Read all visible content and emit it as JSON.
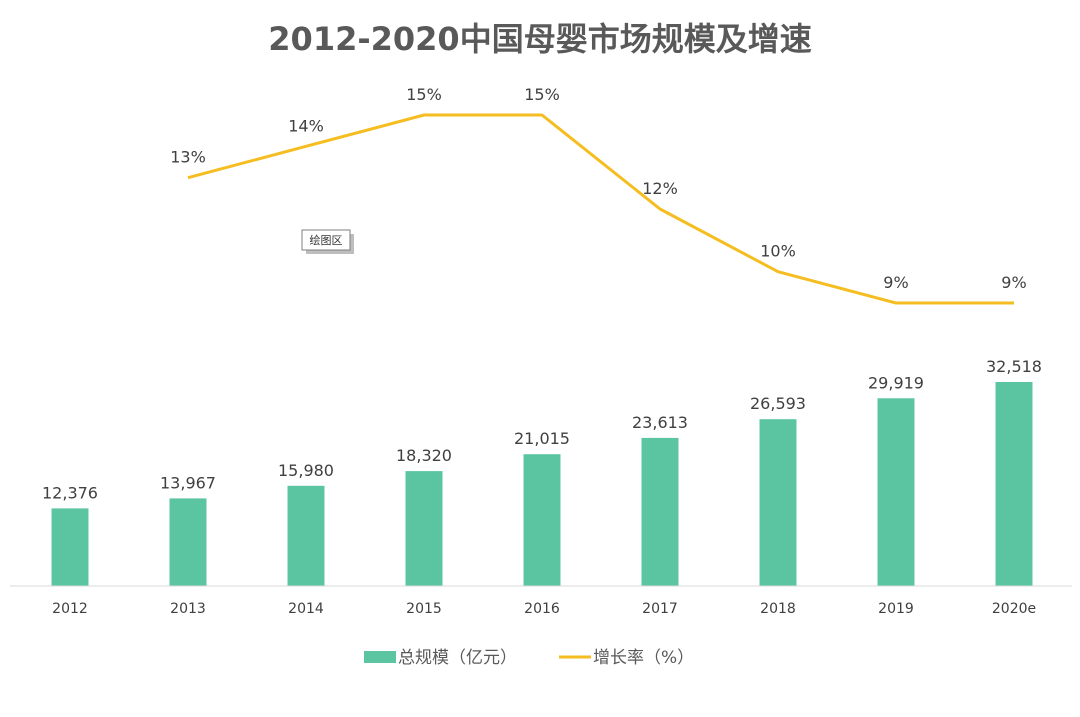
{
  "chart_data": {
    "type": "bar",
    "title": "2012-2020中国母婴市场规模及增速",
    "categories": [
      "2012",
      "2013",
      "2014",
      "2015",
      "2016",
      "2017",
      "2018",
      "2019",
      "2020e"
    ],
    "series": [
      {
        "name": "总规模（亿元）",
        "type": "bar",
        "color": "#5BC4A1",
        "values": [
          12376,
          13967,
          15980,
          18320,
          21015,
          23613,
          26593,
          29919,
          32518
        ],
        "labels": [
          "12,376",
          "13,967",
          "15,980",
          "18,320",
          "21,015",
          "23,613",
          "26,593",
          "29,919",
          "32,518"
        ]
      },
      {
        "name": "增长率（%）",
        "type": "line",
        "color": "#F5BD1F",
        "values": [
          null,
          13,
          14,
          15,
          15,
          12,
          10,
          9,
          9
        ],
        "labels": [
          "",
          "13%",
          "14%",
          "15%",
          "15%",
          "12%",
          "10%",
          "9%",
          "9%"
        ]
      }
    ],
    "legend": "bottom",
    "grid": false,
    "plot_area_tag": "绘图区"
  }
}
